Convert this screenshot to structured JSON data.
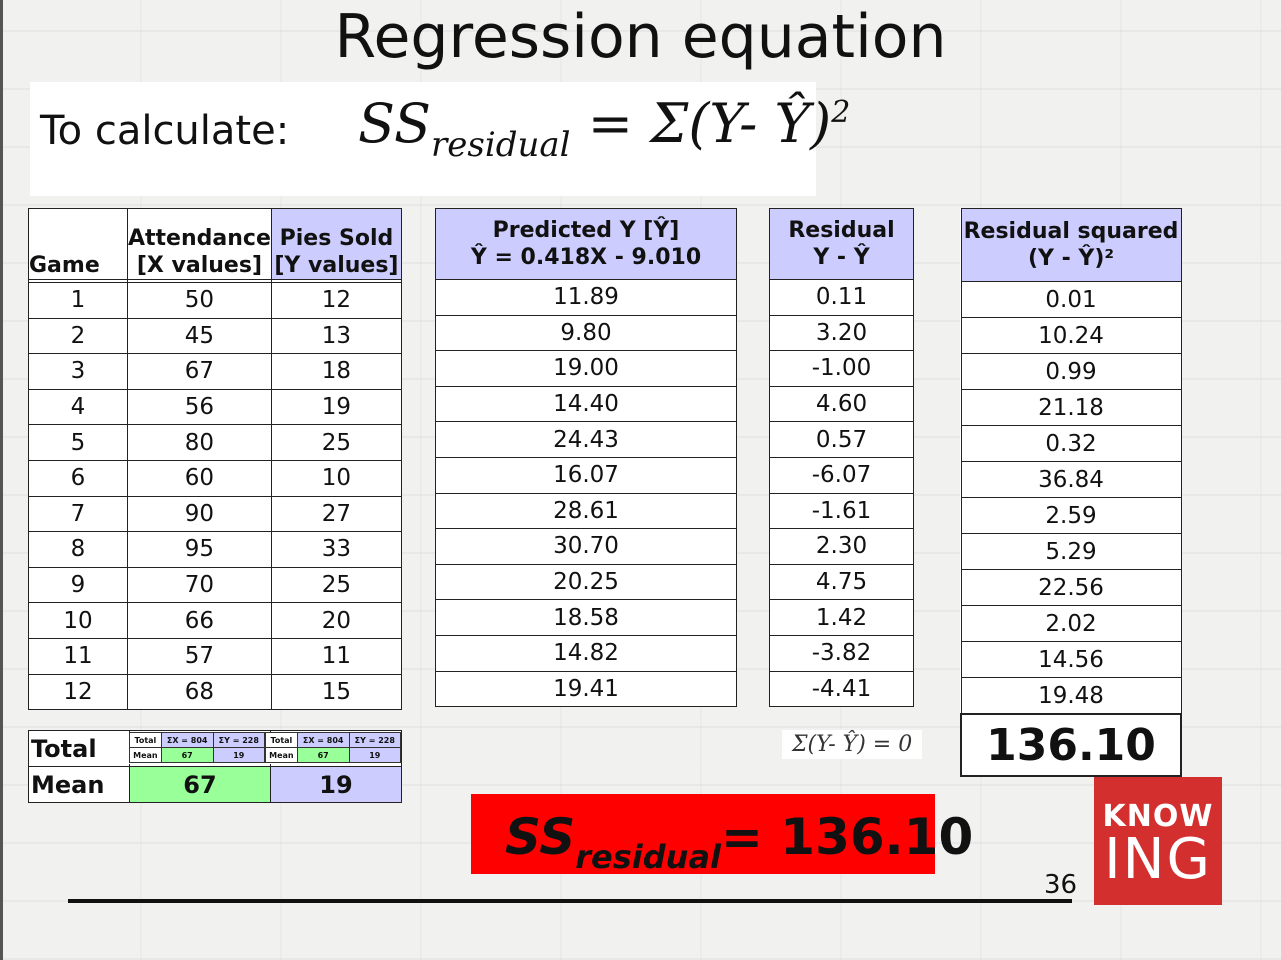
{
  "title": "Regression equation",
  "calc_label": "To calculate:",
  "formula": {
    "lhs": "SS",
    "sub": "residual",
    "rhs": "= Σ(Y- Ŷ)",
    "sup": "2"
  },
  "main_table": {
    "headers": [
      "Game",
      "Attendance\n[X values]",
      "Pies Sold\n[Y values]"
    ],
    "rows": [
      [
        "1",
        "50",
        "12"
      ],
      [
        "2",
        "45",
        "13"
      ],
      [
        "3",
        "67",
        "18"
      ],
      [
        "4",
        "56",
        "19"
      ],
      [
        "5",
        "80",
        "25"
      ],
      [
        "6",
        "60",
        "10"
      ],
      [
        "7",
        "90",
        "27"
      ],
      [
        "8",
        "95",
        "33"
      ],
      [
        "9",
        "70",
        "25"
      ],
      [
        "10",
        "66",
        "20"
      ],
      [
        "11",
        "57",
        "11"
      ],
      [
        "12",
        "68",
        "15"
      ]
    ]
  },
  "predicted_table": {
    "header": "Predicted Y [Ŷ]\nŶ = 0.418X - 9.010",
    "values": [
      "11.89",
      "9.80",
      "19.00",
      "14.40",
      "24.43",
      "16.07",
      "28.61",
      "30.70",
      "20.25",
      "18.58",
      "14.82",
      "19.41"
    ]
  },
  "residual_table": {
    "header": "Residual\nY - Ŷ",
    "values": [
      "0.11",
      "3.20",
      "-1.00",
      "4.60",
      "0.57",
      "-6.07",
      "-1.61",
      "2.30",
      "4.75",
      "1.42",
      "-3.82",
      "-4.41"
    ]
  },
  "squared_table": {
    "header": "Residual squared\n(Y - Ŷ)²",
    "values": [
      "0.01",
      "10.24",
      "0.99",
      "21.18",
      "0.32",
      "36.84",
      "2.59",
      "5.29",
      "22.56",
      "2.02",
      "14.56",
      "19.48"
    ],
    "total": "136.10"
  },
  "summary": {
    "total_label": "Total",
    "mean_label": "Mean",
    "mean_x": "67",
    "mean_y": "19"
  },
  "mini_tables": [
    {
      "r1": [
        "Total",
        "ΣX = 804",
        "ΣY = 228"
      ],
      "r2": [
        "Mean",
        "67",
        "19"
      ]
    },
    {
      "r1": [
        "Total",
        "ΣX = 804",
        "ΣY = 228"
      ],
      "r2": [
        "Mean",
        "67",
        "19"
      ]
    }
  ],
  "sum_note": "Σ(Y- Ŷ) = 0",
  "result": {
    "lhs": "SS",
    "sub": "residual",
    "rhs": "=  136.10"
  },
  "page_number": "36",
  "logo": {
    "top": "KNOW",
    "bottom": "ING"
  },
  "colors": {
    "header_fill": "#ccccff",
    "mean_x_fill": "#99ff99",
    "result_fill": "#ff0000",
    "logo_fill": "#d32f2f"
  }
}
